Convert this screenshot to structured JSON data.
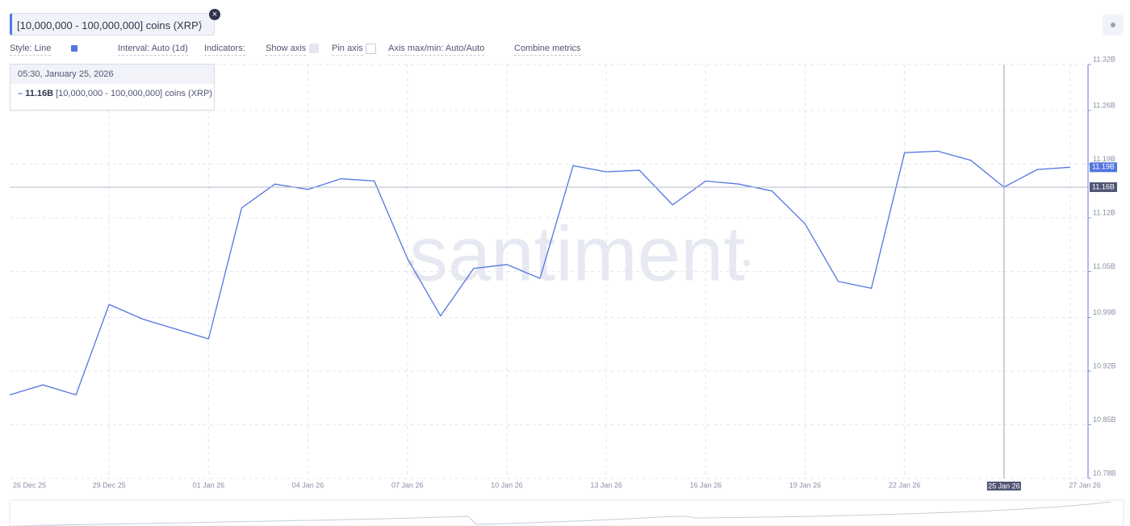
{
  "chart_data": {
    "type": "line",
    "toolbar": {
      "style": "Style: Line",
      "interval": "Interval: Auto (1d)",
      "indicators": "Indicators:",
      "show_axis": "Show axis",
      "pin_axis": "Pin axis",
      "axis_minmax": "Axis max/min: Auto/Auto",
      "combine": "Combine metrics"
    },
    "watermark": "santiment",
    "tooltip": {
      "time": "05:30, January 25, 2026",
      "value_label": "11.16B"
    },
    "crosshair_y_label": "11.16B",
    "last_value_label": "11.19B",
    "categories": [
      "26 Dec 25",
      null,
      null,
      "29 Dec 25",
      null,
      null,
      "01 Jan 26",
      null,
      null,
      "04 Jan 26",
      null,
      null,
      "07 Jan 26",
      null,
      null,
      "10 Jan 26",
      null,
      null,
      "13 Jan 26",
      null,
      null,
      "16 Jan 26",
      null,
      null,
      "19 Jan 26",
      null,
      null,
      "22 Jan 26",
      null,
      null,
      "25 Jan 26",
      null,
      "27 Jan 26"
    ],
    "series": [
      {
        "name": "[10,000,000 - 100,000,000] coins (XRP)",
        "color": "#5275e0",
        "values": [
          10.889,
          10.902,
          10.889,
          11.007,
          10.988,
          10.975,
          10.962,
          11.133,
          11.164,
          11.157,
          11.171,
          11.168,
          11.067,
          10.992,
          11.054,
          11.059,
          11.041,
          11.188,
          11.18,
          11.182,
          11.137,
          11.168,
          11.164,
          11.155,
          11.112,
          11.037,
          11.028,
          11.205,
          11.207,
          11.195,
          11.16,
          11.183,
          11.186
        ]
      }
    ],
    "ylim": [
      10.78,
      11.32
    ],
    "yticks": [
      {
        "value": 10.78,
        "label": "10.78B"
      },
      {
        "value": 10.85,
        "label": "10.85B"
      },
      {
        "value": 10.92,
        "label": "10.92B"
      },
      {
        "value": 10.99,
        "label": "10.99B"
      },
      {
        "value": 11.05,
        "label": "11.05B"
      },
      {
        "value": 11.12,
        "label": "11.12B"
      },
      {
        "value": 11.19,
        "label": "11.19B"
      },
      {
        "value": 11.26,
        "label": "11.26B"
      },
      {
        "value": 11.32,
        "label": "11.32B"
      }
    ],
    "grid": true,
    "crosshair_index": 30
  }
}
